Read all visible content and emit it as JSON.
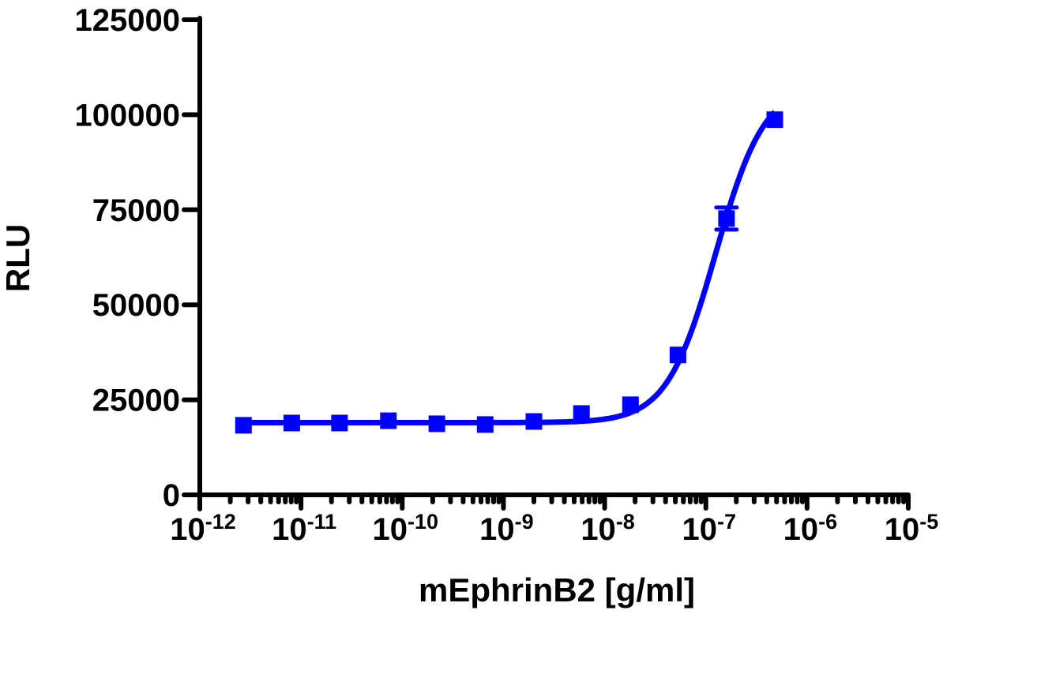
{
  "chart_data": {
    "type": "scatter",
    "title": "",
    "xlabel": "mEphrinB2 [g/ml]",
    "ylabel": "RLU",
    "x_scale": "log10",
    "xlim": [
      1e-12,
      1e-05
    ],
    "ylim": [
      0,
      125000
    ],
    "grid": false,
    "legend": null,
    "x_tick_labels": [
      "10-12",
      "10-11",
      "10-10",
      "10-9",
      "10-8",
      "10-7",
      "10-6",
      "10-5"
    ],
    "x_tick_exponents": [
      -12,
      -11,
      -10,
      -9,
      -8,
      -7,
      -6,
      -5
    ],
    "y_ticks": [
      0,
      25000,
      50000,
      75000,
      100000,
      125000
    ],
    "y_tick_labels": [
      "0",
      "25000",
      "50000",
      "75000",
      "100000",
      "125000"
    ],
    "series": [
      {
        "name": "mEphrinB2",
        "color": "#0000ff",
        "marker": "square",
        "x": [
          2.7e-12,
          8.1e-12,
          2.4e-11,
          7.3e-11,
          2.2e-10,
          6.6e-10,
          2e-09,
          5.9e-09,
          1.8e-08,
          5.3e-08,
          1.6e-07,
          4.8e-07
        ],
        "y": [
          18300,
          18900,
          18900,
          19500,
          18700,
          18500,
          19300,
          21400,
          23700,
          36800,
          72700,
          98700
        ],
        "error": [
          0,
          0,
          0,
          0,
          0,
          0,
          0,
          0,
          0,
          0,
          2900,
          0
        ]
      }
    ],
    "fit": {
      "type": "4PL",
      "bottom": 19000,
      "top": 108000,
      "ec50": 1.25e-07,
      "hill": 1.8,
      "color": "#0000ff"
    }
  }
}
